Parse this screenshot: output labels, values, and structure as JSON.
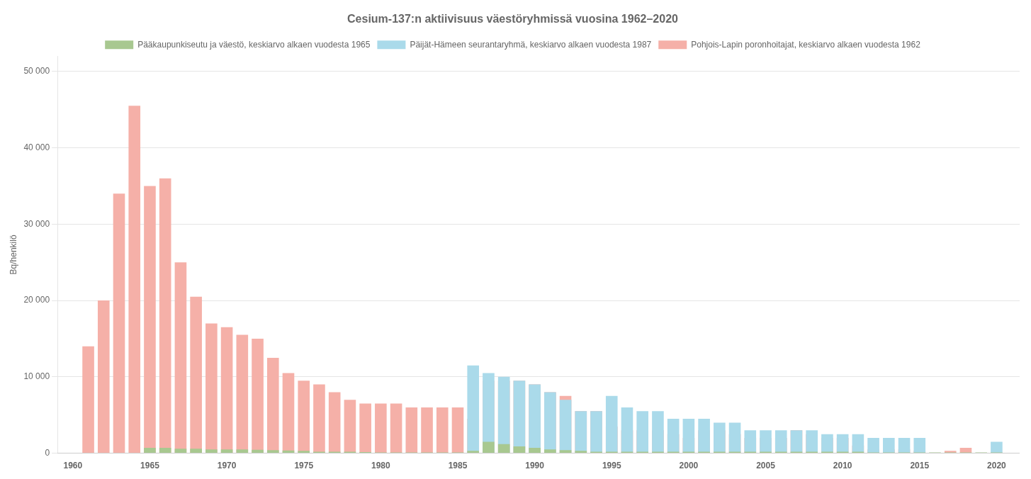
{
  "chart_data": {
    "type": "bar",
    "title": "Cesium-137:n aktiivisuus väestöryhmissä vuosina 1962–2020",
    "ylabel": "Bq/henkilö",
    "series": [
      {
        "name": "Pohjois-Lapin poronhoitajat, keskiarvo alkaen vuodesta 1962",
        "color": "#f5b0a8",
        "x": [
          1961,
          1962,
          1963,
          1964,
          1965,
          1966,
          1967,
          1968,
          1969,
          1970,
          1971,
          1972,
          1973,
          1974,
          1975,
          1976,
          1977,
          1978,
          1979,
          1980,
          1981,
          1982,
          1983,
          1984,
          1985,
          1986,
          1987,
          1988,
          1989,
          1990,
          1991,
          1992,
          1993,
          1994,
          1995,
          1996,
          1997,
          1998,
          1999,
          2000,
          2001,
          2002,
          2003,
          2004,
          2005,
          2006,
          2007,
          2008,
          2009,
          2010,
          2011,
          2012,
          2013,
          2014,
          2015,
          2017,
          2018
        ],
        "values": [
          14000,
          20000,
          34000,
          45500,
          35000,
          36000,
          25000,
          20500,
          17000,
          16500,
          15500,
          15000,
          12500,
          10500,
          9500,
          9000,
          8000,
          7000,
          6500,
          6500,
          6500,
          6000,
          6000,
          6000,
          6000,
          4500,
          9500,
          9500,
          9500,
          9000,
          8000,
          7500,
          5500,
          5500,
          3500,
          3000,
          3000,
          3000,
          2500,
          2000,
          3000,
          3000,
          2500,
          2000,
          2000,
          2000,
          3000,
          2500,
          2000,
          2000,
          1000,
          500,
          500,
          500,
          300,
          300,
          700
        ]
      },
      {
        "name": "Päijät-Hämeen seurantaryhmä, keskiarvo alkaen vuodesta 1987",
        "color": "#aadaea",
        "x": [
          1986,
          1987,
          1988,
          1989,
          1990,
          1991,
          1992,
          1993,
          1994,
          1995,
          1996,
          1997,
          1998,
          1999,
          2000,
          2001,
          2002,
          2003,
          2004,
          2005,
          2006,
          2007,
          2008,
          2009,
          2010,
          2011,
          2012,
          2013,
          2014,
          2015,
          2020
        ],
        "values": [
          11500,
          10500,
          10000,
          9500,
          9000,
          8000,
          7000,
          5500,
          5500,
          7500,
          6000,
          5500,
          5500,
          4500,
          4500,
          4500,
          4000,
          4000,
          3000,
          3000,
          3000,
          3000,
          3000,
          2500,
          2500,
          2500,
          2000,
          2000,
          2000,
          2000,
          1500
        ]
      },
      {
        "name": "Pääkaupunkiseutu ja väestö, keskiarvo alkaen vuodesta 1965",
        "color": "#a8c890",
        "x": [
          1965,
          1966,
          1967,
          1968,
          1969,
          1970,
          1971,
          1972,
          1973,
          1974,
          1975,
          1976,
          1977,
          1978,
          1979,
          1980,
          1981,
          1982,
          1983,
          1984,
          1985,
          1986,
          1987,
          1988,
          1989,
          1990,
          1991,
          1992,
          1993,
          1994,
          1995,
          1996,
          1997,
          1998,
          1999,
          2000,
          2001,
          2002,
          2003,
          2004,
          2005,
          2006,
          2007,
          2008,
          2009,
          2010,
          2011,
          2012,
          2013,
          2014,
          2015,
          2016,
          2017,
          2018,
          2019,
          2020
        ],
        "values": [
          700,
          700,
          600,
          600,
          500,
          500,
          500,
          450,
          400,
          350,
          300,
          200,
          200,
          200,
          150,
          100,
          100,
          100,
          100,
          100,
          100,
          300,
          1500,
          1200,
          900,
          700,
          500,
          400,
          300,
          200,
          200,
          200,
          200,
          200,
          200,
          200,
          200,
          200,
          200,
          200,
          200,
          200,
          200,
          200,
          200,
          200,
          200,
          100,
          100,
          100,
          100,
          100,
          100,
          100,
          100,
          100
        ]
      }
    ],
    "xlim": [
      1959,
      2021.5
    ],
    "xticks": [
      1960,
      1965,
      1970,
      1975,
      1980,
      1985,
      1990,
      1995,
      2000,
      2005,
      2010,
      2015,
      2020
    ],
    "ylim": [
      0,
      52000
    ],
    "yticks": [
      0,
      {
        "value": 10000,
        "label": "10 000"
      },
      {
        "value": 20000,
        "label": "20 000"
      },
      {
        "value": 30000,
        "label": "30 000"
      },
      {
        "value": 40000,
        "label": "40 000"
      },
      {
        "value": 50000,
        "label": "50 000"
      }
    ],
    "grid": true,
    "legend": "top"
  }
}
